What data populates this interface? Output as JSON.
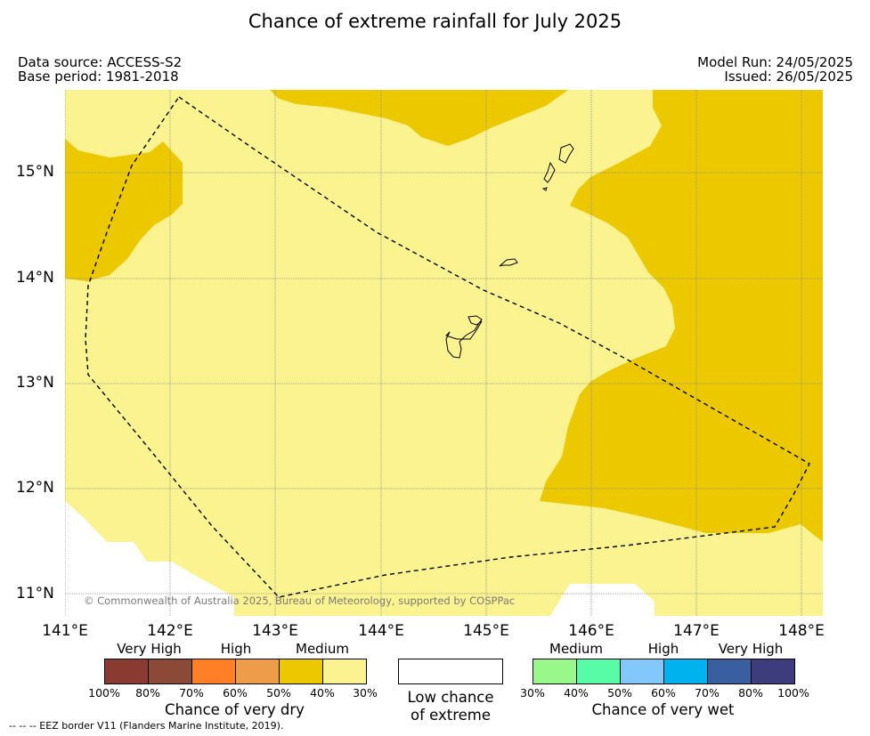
{
  "title": "Chance of extreme rainfall for July 2025",
  "data_source": "Data source: ACCESS-S2",
  "base_period": "Base period: 1981-2018",
  "model_run": "Model Run: 24/05/2025",
  "issued": "Issued: 26/05/2025",
  "copyright": "© Commonwealth of Australia 2025, Bureau of Meteorology, supported by COSPPac",
  "footnote": "--  --  -- EEZ border V11 (Flanders Marine Institute, 2019).",
  "map": {
    "lat_labels": [
      "15°N",
      "14°N",
      "13°N",
      "12°N",
      "11°N"
    ],
    "lon_labels": [
      "141°E",
      "142°E",
      "143°E",
      "144°E",
      "145°E",
      "146°E",
      "147°E",
      "148°E"
    ],
    "colors": {
      "medium_dry": "#ecc800",
      "low_dry": "#fbf38f",
      "low": "#ffffff",
      "coast": "#000000"
    }
  },
  "legend": {
    "dry": {
      "headers": [
        "Very High",
        "High",
        "Medium"
      ],
      "colors": [
        "#8b3a32",
        "#8b4a38",
        "#ff7f27",
        "#ee9c48",
        "#ecc800",
        "#fbf38f"
      ],
      "ticks": [
        "100%",
        "80%",
        "70%",
        "60%",
        "50%",
        "40%",
        "30%"
      ],
      "title": "Chance of very dry"
    },
    "low": {
      "line1": "Low chance",
      "line2": "of extreme",
      "color": "#ffffff"
    },
    "wet": {
      "headers": [
        "Medium",
        "High",
        "Very High"
      ],
      "colors": [
        "#98f98a",
        "#58fba6",
        "#82c8fa",
        "#00b2ee",
        "#3a5fa0",
        "#3d3d7e"
      ],
      "ticks": [
        "30%",
        "40%",
        "50%",
        "60%",
        "70%",
        "80%",
        "100%"
      ],
      "title": "Chance of very wet"
    }
  }
}
